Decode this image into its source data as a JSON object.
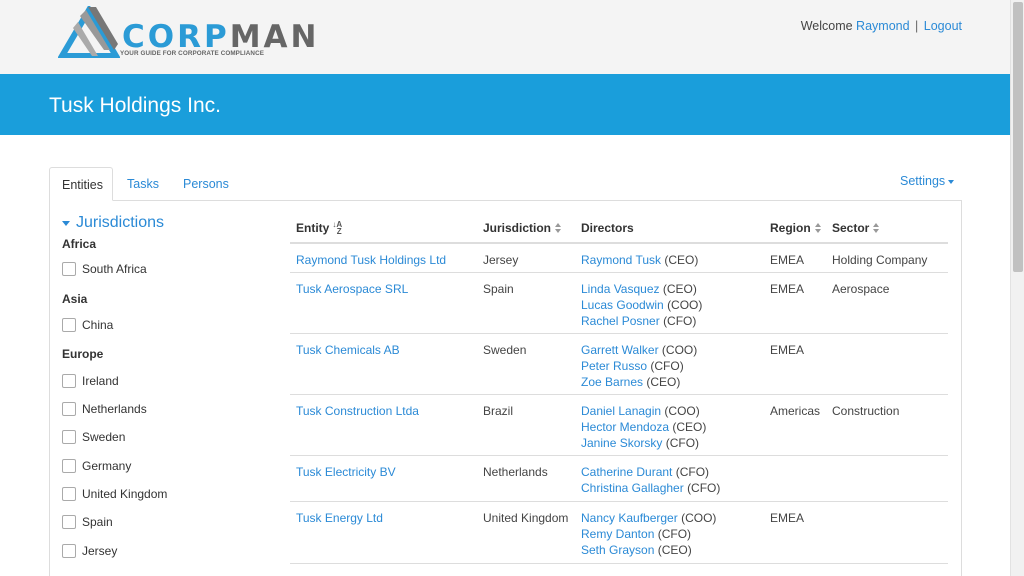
{
  "header": {
    "logo": {
      "word_a": "CORP",
      "word_b": "MAN",
      "tagline": "YOUR GUIDE FOR CORPORATE COMPLIANCE"
    },
    "welcome_label": "Welcome",
    "user_name": "Raymond",
    "separator": "|",
    "logout_label": "Logout"
  },
  "page_title": "Tusk Holdings Inc.",
  "tabs": [
    {
      "label": "Entities",
      "active": true
    },
    {
      "label": "Tasks",
      "active": false
    },
    {
      "label": "Persons",
      "active": false
    }
  ],
  "settings_label": "Settings",
  "filters": {
    "title": "Jurisdictions",
    "groups": [
      {
        "region": "Africa",
        "countries": [
          "South Africa"
        ]
      },
      {
        "region": "Asia",
        "countries": [
          "China"
        ]
      },
      {
        "region": "Europe",
        "countries": [
          "Ireland",
          "Netherlands",
          "Sweden",
          "Germany",
          "United Kingdom",
          "Spain",
          "Jersey"
        ]
      }
    ]
  },
  "table": {
    "columns": [
      "Entity",
      "Jurisdiction",
      "Directors",
      "Region",
      "Sector"
    ],
    "rows": [
      {
        "entity": "Raymond Tusk Holdings Ltd",
        "jurisdiction": "Jersey",
        "directors": [
          {
            "name": "Raymond Tusk",
            "role": "(CEO)"
          }
        ],
        "region": "EMEA",
        "sector": "Holding Company"
      },
      {
        "entity": "Tusk Aerospace SRL",
        "jurisdiction": "Spain",
        "directors": [
          {
            "name": "Linda Vasquez",
            "role": "(CEO)"
          },
          {
            "name": "Lucas Goodwin",
            "role": "(COO)"
          },
          {
            "name": "Rachel Posner",
            "role": "(CFO)"
          }
        ],
        "region": "EMEA",
        "sector": "Aerospace"
      },
      {
        "entity": "Tusk Chemicals AB",
        "jurisdiction": "Sweden",
        "directors": [
          {
            "name": "Garrett Walker",
            "role": "(COO)"
          },
          {
            "name": "Peter Russo",
            "role": "(CFO)"
          },
          {
            "name": "Zoe Barnes",
            "role": "(CEO)"
          }
        ],
        "region": "EMEA",
        "sector": ""
      },
      {
        "entity": "Tusk Construction Ltda",
        "jurisdiction": "Brazil",
        "directors": [
          {
            "name": "Daniel Lanagin",
            "role": "(COO)"
          },
          {
            "name": "Hector Mendoza",
            "role": "(CEO)"
          },
          {
            "name": "Janine Skorsky",
            "role": "(CFO)"
          }
        ],
        "region": "Americas",
        "sector": "Construction"
      },
      {
        "entity": "Tusk Electricity BV",
        "jurisdiction": "Netherlands",
        "directors": [
          {
            "name": "Catherine Durant",
            "role": "(CFO)"
          },
          {
            "name": "Christina Gallagher",
            "role": "(CFO)"
          }
        ],
        "region": "",
        "sector": ""
      },
      {
        "entity": "Tusk Energy Ltd",
        "jurisdiction": "United Kingdom",
        "directors": [
          {
            "name": "Nancy Kaufberger",
            "role": "(COO)"
          },
          {
            "name": "Remy Danton",
            "role": "(CFO)"
          },
          {
            "name": "Seth Grayson",
            "role": "(CEO)"
          }
        ],
        "region": "EMEA",
        "sector": ""
      }
    ]
  },
  "colors": {
    "brand": "#1a9edb",
    "link": "#2b8ad6"
  }
}
